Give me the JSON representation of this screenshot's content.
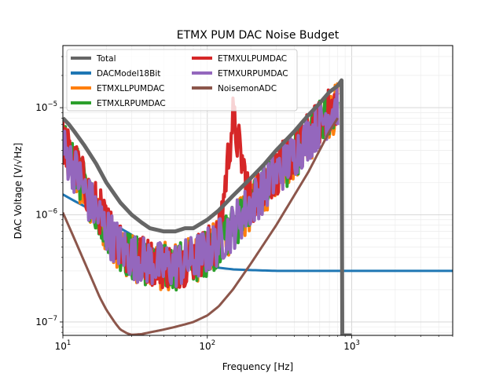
{
  "chart_data": {
    "type": "line",
    "title": "ETMX PUM DAC Noise Budget",
    "xlabel": "Frequency [Hz]",
    "ylabel": "DAC Voltage [V/√Hz]",
    "xscale": "log",
    "yscale": "log",
    "xlim": [
      10,
      5000
    ],
    "ylim": [
      7.5e-08,
      3.8e-05
    ],
    "grid": "on (major and minor)",
    "legend_position": "upper-left, two columns",
    "x_ticks": [
      {
        "value": 10,
        "base": "10",
        "exp": "1"
      },
      {
        "value": 100,
        "base": "10",
        "exp": "2"
      },
      {
        "value": 1000,
        "base": "10",
        "exp": "3"
      }
    ],
    "y_ticks": [
      {
        "value": 1e-07,
        "base": "10",
        "exp": "−7"
      },
      {
        "value": 1e-06,
        "base": "10",
        "exp": "−6"
      },
      {
        "value": 1e-05,
        "base": "10",
        "exp": "−5"
      }
    ],
    "series": [
      {
        "name": "Total",
        "color": "#666666",
        "width": 5,
        "x": [
          10,
          11,
          12,
          14,
          17,
          20,
          25,
          30,
          35,
          40,
          50,
          60,
          70,
          80,
          100,
          120,
          150,
          200,
          250,
          300,
          400,
          500,
          600,
          700,
          800,
          850,
          860,
          900,
          1000
        ],
        "y": [
          8e-06,
          7e-06,
          6e-06,
          4.5e-06,
          3e-06,
          2e-06,
          1.3e-06,
          1e-06,
          8.5e-07,
          7.5e-07,
          7e-07,
          7e-07,
          7.5e-07,
          7.5e-07,
          9e-07,
          1.1e-06,
          1.5e-06,
          2.2e-06,
          3e-06,
          4e-06,
          6e-06,
          8.5e-06,
          1.1e-05,
          1.4e-05,
          1.6e-05,
          1.8e-05,
          7.5e-08,
          7.5e-08,
          7.5e-08
        ]
      },
      {
        "name": "DACModel18Bit",
        "color": "#1f77b4",
        "width": 3,
        "x": [
          10,
          12,
          15,
          20,
          25,
          30,
          40,
          50,
          70,
          100,
          150,
          200,
          300,
          500,
          1000,
          2000,
          5000
        ],
        "y": [
          1.55e-06,
          1.35e-06,
          1.15e-06,
          9e-07,
          7.5e-07,
          6.5e-07,
          5e-07,
          4.3e-07,
          3.6e-07,
          3.3e-07,
          3.1e-07,
          3.05e-07,
          3e-07,
          3e-07,
          3e-07,
          3e-07,
          3e-07
        ]
      },
      {
        "name": "ETMXLLPUMDAC",
        "color": "#ff7f0e",
        "width": 4,
        "x": [
          10,
          11,
          13,
          15,
          18,
          20,
          25,
          30,
          40,
          50,
          60,
          70,
          80,
          100,
          120,
          150,
          200,
          250,
          300,
          400,
          500,
          600,
          700,
          800
        ],
        "y": [
          4e-06,
          3e-06,
          2e-06,
          1.3e-06,
          9e-07,
          7e-07,
          5e-07,
          4e-07,
          3.5e-07,
          3.3e-07,
          3.4e-07,
          3.6e-07,
          3.8e-07,
          4.5e-07,
          5.5e-07,
          7.5e-07,
          1.2e-06,
          1.7e-06,
          2.3e-06,
          3.5e-06,
          5e-06,
          6.5e-06,
          8.5e-06,
          1.05e-05
        ]
      },
      {
        "name": "ETMXLRPUMDAC",
        "color": "#2ca02c",
        "width": 4,
        "x": [
          10,
          11,
          13,
          15,
          18,
          20,
          25,
          30,
          40,
          50,
          60,
          70,
          80,
          100,
          120,
          150,
          200,
          250,
          300,
          400,
          500,
          600,
          700,
          800
        ],
        "y": [
          4.5e-06,
          3.5e-06,
          2.3e-06,
          1.5e-06,
          1e-06,
          7.5e-07,
          5e-07,
          4e-07,
          3.5e-07,
          3.2e-07,
          3.3e-07,
          3.5e-07,
          3.8e-07,
          4.5e-07,
          5.5e-07,
          7.8e-07,
          1.25e-06,
          1.8e-06,
          2.4e-06,
          3.6e-06,
          5.2e-06,
          7e-06,
          9e-06,
          1.1e-05
        ]
      },
      {
        "name": "ETMXULPUMDAC",
        "color": "#d62728",
        "width": 4,
        "x": [
          10,
          11,
          13,
          15,
          18,
          20,
          25,
          30,
          40,
          50,
          60,
          70,
          80,
          100,
          120,
          150,
          200,
          250,
          300,
          400,
          500,
          600,
          700,
          800
        ],
        "y": [
          5e-06,
          3.8e-06,
          2.5e-06,
          1.6e-06,
          1.1e-06,
          8e-07,
          5.5e-07,
          4.3e-07,
          3.7e-07,
          3.4e-07,
          3.4e-07,
          3.6e-07,
          4e-07,
          4.8e-07,
          5.8e-07,
          8e-06,
          1.3e-06,
          1.9e-06,
          2.5e-06,
          3.8e-06,
          5.5e-06,
          7.2e-06,
          9.2e-06,
          1.15e-05
        ]
      },
      {
        "name": "ETMXURPUMDAC",
        "color": "#9467bd",
        "width": 4,
        "x": [
          10,
          11,
          13,
          15,
          18,
          20,
          25,
          30,
          40,
          50,
          60,
          70,
          80,
          100,
          120,
          150,
          200,
          250,
          300,
          400,
          500,
          600,
          700,
          800
        ],
        "y": [
          4.2e-06,
          3.3e-06,
          2.2e-06,
          1.4e-06,
          9.5e-07,
          7.2e-07,
          5e-07,
          4.1e-07,
          3.6e-07,
          3.3e-07,
          3.4e-07,
          3.6e-07,
          3.9e-07,
          4.6e-07,
          5.6e-07,
          7.7e-07,
          1.25e-06,
          1.8e-06,
          2.4e-06,
          3.7e-06,
          5.3e-06,
          7e-06,
          9e-06,
          1.1e-05
        ]
      },
      {
        "name": "NoisemonADC",
        "color": "#8c564b",
        "width": 3,
        "x": [
          10,
          12,
          15,
          18,
          20,
          23,
          25,
          28,
          30,
          35,
          40,
          50,
          60,
          70,
          80,
          100,
          120,
          150,
          200,
          300,
          500,
          700,
          800
        ],
        "y": [
          1.05e-06,
          6e-07,
          3e-07,
          1.7e-07,
          1.3e-07,
          9.8e-08,
          8.5e-08,
          7.8e-08,
          7.6e-08,
          7.7e-08,
          8e-08,
          8.5e-08,
          9e-08,
          9.5e-08,
          1e-07,
          1.15e-07,
          1.4e-07,
          2e-07,
          3.5e-07,
          8e-07,
          2.5e-06,
          6e-06,
          8e-06
        ]
      }
    ]
  }
}
